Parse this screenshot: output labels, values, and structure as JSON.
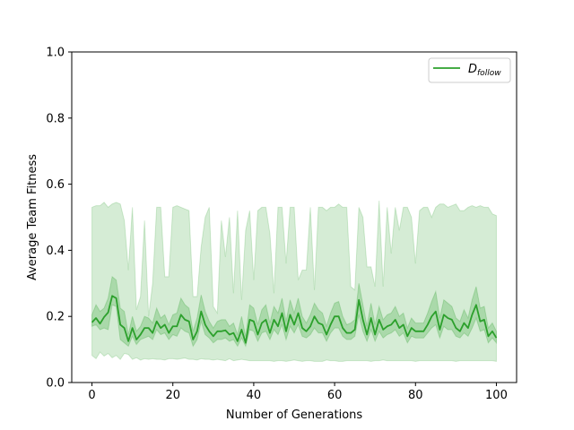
{
  "chart_data": {
    "type": "line",
    "title": "",
    "xlabel": "Number of Generations",
    "ylabel": "Average Team Fitness",
    "xlim": [
      -5,
      105
    ],
    "ylim": [
      0.0,
      1.0
    ],
    "xticks": [
      0,
      20,
      40,
      60,
      80,
      100
    ],
    "xtick_labels": [
      "0",
      "20",
      "40",
      "60",
      "80",
      "100"
    ],
    "yticks": [
      0.0,
      0.2,
      0.4,
      0.6,
      0.8,
      1.0
    ],
    "ytick_labels": [
      "0.0",
      "0.2",
      "0.4",
      "0.6",
      "0.8",
      "1.0"
    ],
    "grid": false,
    "legend": {
      "position": "top-right"
    },
    "colors": {
      "line": "#2ca02c",
      "fill": "#2ca02c"
    },
    "series": [
      {
        "legend_main": "D",
        "legend_sub": "follow",
        "x": [
          0,
          1,
          2,
          3,
          4,
          5,
          6,
          7,
          8,
          9,
          10,
          11,
          12,
          13,
          14,
          15,
          16,
          17,
          18,
          19,
          20,
          21,
          22,
          23,
          24,
          25,
          26,
          27,
          28,
          29,
          30,
          31,
          32,
          33,
          34,
          35,
          36,
          37,
          38,
          39,
          40,
          41,
          42,
          43,
          44,
          45,
          46,
          47,
          48,
          49,
          50,
          51,
          52,
          53,
          54,
          55,
          56,
          57,
          58,
          59,
          60,
          61,
          62,
          63,
          64,
          65,
          66,
          67,
          68,
          69,
          70,
          71,
          72,
          73,
          74,
          75,
          76,
          77,
          78,
          79,
          80,
          81,
          82,
          83,
          84,
          85,
          86,
          87,
          88,
          89,
          90,
          91,
          92,
          93,
          94,
          95,
          96,
          97,
          98,
          99,
          100
        ],
        "y": [
          0.182,
          0.195,
          0.178,
          0.198,
          0.212,
          0.262,
          0.255,
          0.175,
          0.165,
          0.125,
          0.165,
          0.13,
          0.145,
          0.165,
          0.165,
          0.15,
          0.185,
          0.165,
          0.175,
          0.15,
          0.17,
          0.17,
          0.205,
          0.19,
          0.185,
          0.13,
          0.155,
          0.215,
          0.175,
          0.155,
          0.14,
          0.155,
          0.155,
          0.158,
          0.145,
          0.15,
          0.125,
          0.16,
          0.12,
          0.19,
          0.185,
          0.145,
          0.18,
          0.19,
          0.15,
          0.19,
          0.17,
          0.21,
          0.155,
          0.205,
          0.175,
          0.21,
          0.165,
          0.155,
          0.17,
          0.2,
          0.18,
          0.175,
          0.145,
          0.175,
          0.2,
          0.2,
          0.165,
          0.15,
          0.15,
          0.16,
          0.25,
          0.19,
          0.145,
          0.195,
          0.145,
          0.19,
          0.16,
          0.17,
          0.175,
          0.19,
          0.165,
          0.175,
          0.14,
          0.165,
          0.155,
          0.155,
          0.155,
          0.175,
          0.2,
          0.215,
          0.16,
          0.205,
          0.195,
          0.19,
          0.165,
          0.155,
          0.18,
          0.165,
          0.205,
          0.235,
          0.185,
          0.19,
          0.14,
          0.155,
          0.135
        ],
        "inner_band": {
          "lower": [
            0.17,
            0.175,
            0.16,
            0.165,
            0.16,
            0.235,
            0.23,
            0.13,
            0.12,
            0.11,
            0.14,
            0.115,
            0.13,
            0.135,
            0.14,
            0.13,
            0.16,
            0.145,
            0.15,
            0.13,
            0.145,
            0.14,
            0.165,
            0.155,
            0.15,
            0.11,
            0.13,
            0.185,
            0.145,
            0.135,
            0.12,
            0.13,
            0.13,
            0.135,
            0.125,
            0.13,
            0.11,
            0.135,
            0.11,
            0.16,
            0.155,
            0.125,
            0.15,
            0.155,
            0.13,
            0.16,
            0.145,
            0.175,
            0.13,
            0.17,
            0.15,
            0.175,
            0.14,
            0.135,
            0.145,
            0.165,
            0.15,
            0.15,
            0.125,
            0.15,
            0.165,
            0.165,
            0.14,
            0.13,
            0.13,
            0.14,
            0.205,
            0.155,
            0.125,
            0.16,
            0.125,
            0.155,
            0.135,
            0.145,
            0.15,
            0.16,
            0.14,
            0.15,
            0.12,
            0.14,
            0.135,
            0.135,
            0.135,
            0.15,
            0.165,
            0.175,
            0.135,
            0.17,
            0.16,
            0.16,
            0.14,
            0.135,
            0.15,
            0.14,
            0.165,
            0.195,
            0.155,
            0.16,
            0.12,
            0.135,
            0.12
          ],
          "upper": [
            0.205,
            0.235,
            0.215,
            0.225,
            0.255,
            0.32,
            0.31,
            0.225,
            0.215,
            0.145,
            0.2,
            0.155,
            0.17,
            0.2,
            0.195,
            0.18,
            0.225,
            0.195,
            0.205,
            0.175,
            0.205,
            0.21,
            0.255,
            0.235,
            0.225,
            0.155,
            0.195,
            0.265,
            0.215,
            0.185,
            0.165,
            0.185,
            0.19,
            0.19,
            0.17,
            0.18,
            0.145,
            0.2,
            0.14,
            0.235,
            0.225,
            0.175,
            0.22,
            0.235,
            0.18,
            0.23,
            0.21,
            0.255,
            0.185,
            0.25,
            0.21,
            0.255,
            0.2,
            0.18,
            0.205,
            0.24,
            0.22,
            0.21,
            0.17,
            0.21,
            0.24,
            0.245,
            0.2,
            0.175,
            0.18,
            0.19,
            0.3,
            0.235,
            0.17,
            0.24,
            0.175,
            0.23,
            0.19,
            0.205,
            0.21,
            0.23,
            0.2,
            0.21,
            0.165,
            0.195,
            0.18,
            0.18,
            0.18,
            0.21,
            0.245,
            0.275,
            0.195,
            0.25,
            0.24,
            0.23,
            0.195,
            0.185,
            0.22,
            0.195,
            0.25,
            0.29,
            0.225,
            0.23,
            0.165,
            0.18,
            0.155
          ]
        },
        "outer_band": {
          "lower": [
            0.082,
            0.072,
            0.092,
            0.08,
            0.088,
            0.075,
            0.082,
            0.07,
            0.088,
            0.085,
            0.07,
            0.075,
            0.068,
            0.072,
            0.07,
            0.072,
            0.07,
            0.07,
            0.068,
            0.072,
            0.072,
            0.07,
            0.072,
            0.074,
            0.07,
            0.07,
            0.068,
            0.072,
            0.07,
            0.07,
            0.068,
            0.07,
            0.068,
            0.066,
            0.072,
            0.066,
            0.068,
            0.07,
            0.068,
            0.066,
            0.066,
            0.066,
            0.066,
            0.066,
            0.066,
            0.064,
            0.066,
            0.066,
            0.064,
            0.066,
            0.068,
            0.066,
            0.064,
            0.066,
            0.066,
            0.064,
            0.064,
            0.064,
            0.068,
            0.066,
            0.066,
            0.064,
            0.064,
            0.066,
            0.066,
            0.066,
            0.066,
            0.066,
            0.066,
            0.064,
            0.066,
            0.066,
            0.068,
            0.066,
            0.066,
            0.066,
            0.066,
            0.066,
            0.066,
            0.066,
            0.064,
            0.066,
            0.066,
            0.066,
            0.066,
            0.066,
            0.066,
            0.066,
            0.066,
            0.066,
            0.064,
            0.066,
            0.066,
            0.066,
            0.066,
            0.066,
            0.066,
            0.066,
            0.066,
            0.066,
            0.064
          ],
          "upper": [
            0.53,
            0.535,
            0.535,
            0.545,
            0.53,
            0.54,
            0.545,
            0.54,
            0.49,
            0.34,
            0.53,
            0.22,
            0.26,
            0.49,
            0.2,
            0.3,
            0.53,
            0.53,
            0.32,
            0.32,
            0.53,
            0.535,
            0.53,
            0.525,
            0.52,
            0.26,
            0.26,
            0.41,
            0.5,
            0.53,
            0.23,
            0.21,
            0.49,
            0.38,
            0.5,
            0.27,
            0.52,
            0.25,
            0.46,
            0.52,
            0.31,
            0.52,
            0.53,
            0.53,
            0.45,
            0.27,
            0.53,
            0.53,
            0.36,
            0.53,
            0.53,
            0.31,
            0.34,
            0.34,
            0.53,
            0.28,
            0.53,
            0.53,
            0.52,
            0.53,
            0.53,
            0.54,
            0.53,
            0.53,
            0.29,
            0.28,
            0.53,
            0.5,
            0.35,
            0.35,
            0.29,
            0.55,
            0.29,
            0.53,
            0.39,
            0.53,
            0.46,
            0.53,
            0.53,
            0.5,
            0.36,
            0.52,
            0.53,
            0.53,
            0.5,
            0.53,
            0.54,
            0.54,
            0.53,
            0.535,
            0.54,
            0.52,
            0.52,
            0.53,
            0.535,
            0.53,
            0.535,
            0.53,
            0.53,
            0.51,
            0.505
          ]
        }
      }
    ]
  }
}
